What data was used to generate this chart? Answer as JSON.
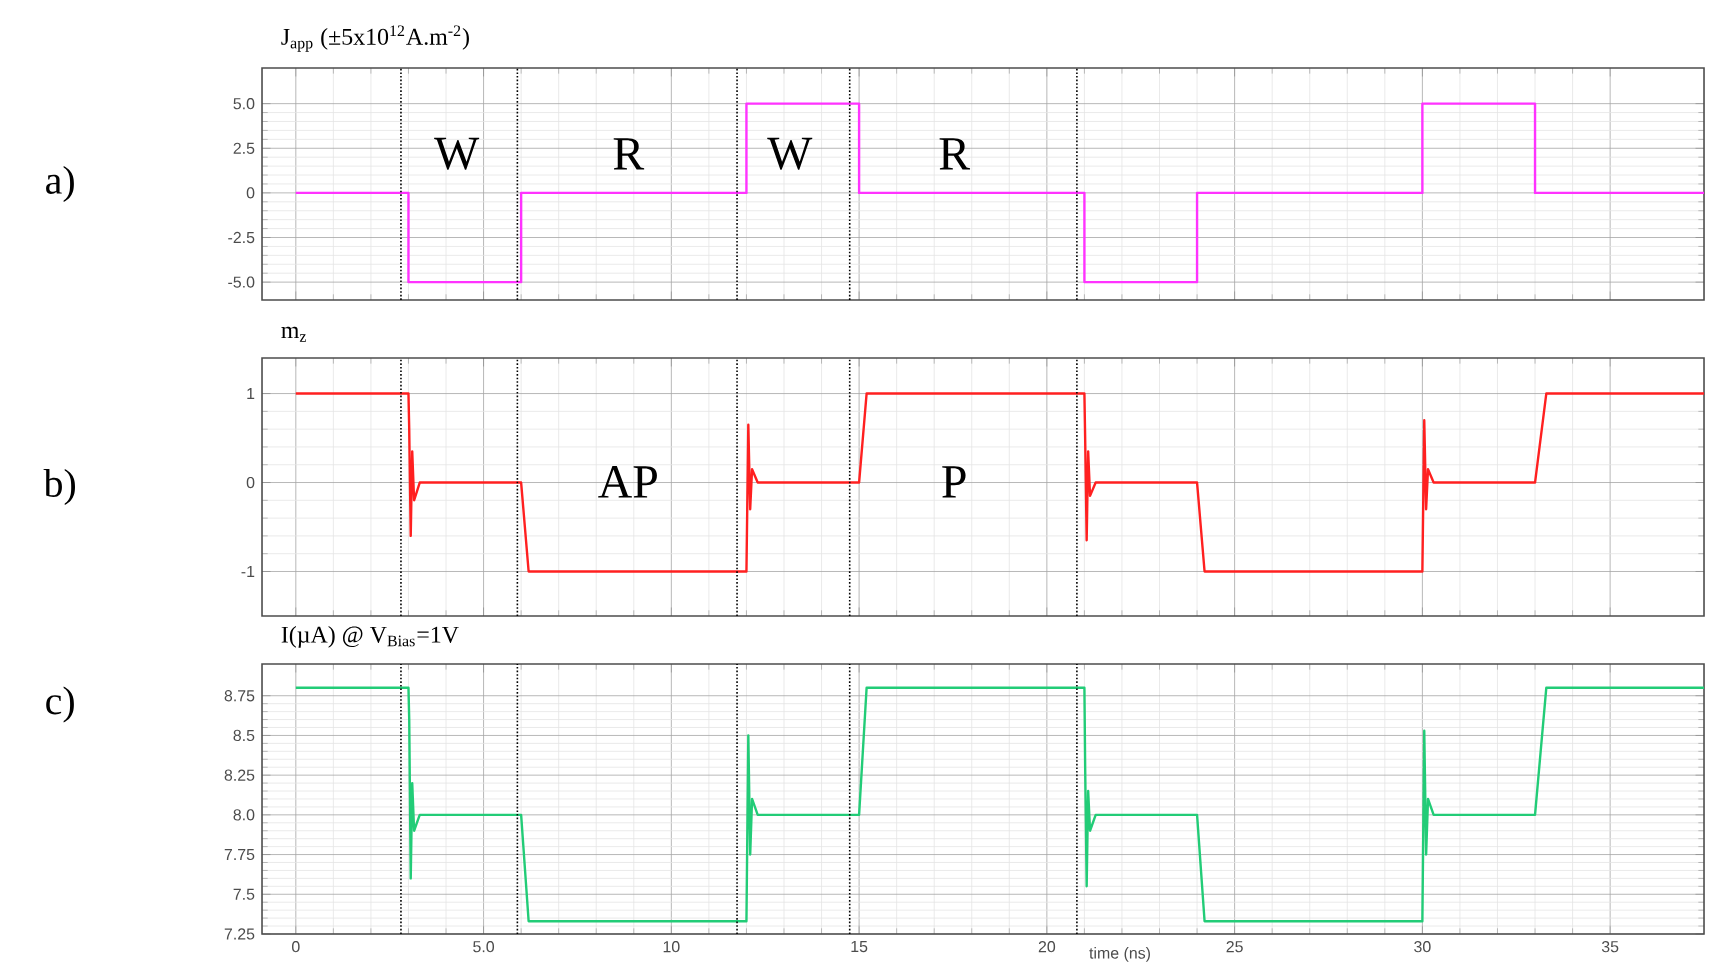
{
  "chart_data": [
    {
      "type": "line",
      "title": "J$_{app}$ (±5x10$^{12}$A.m$^{-2}$)",
      "xlim": [
        -0.9,
        37.5
      ],
      "ylim": [
        -6,
        7
      ],
      "xticks": [
        0,
        5,
        10,
        15,
        20,
        25,
        30,
        35
      ],
      "yticks": [
        {
          "value": 5,
          "label": "5.0"
        },
        2.5,
        0,
        -2.5,
        {
          "value": -5,
          "label": "-5.0"
        }
      ],
      "tick_labels": "y",
      "grid": true,
      "series": [
        {
          "color": "#ff33ff",
          "x": [
            0,
            3,
            3,
            6,
            6,
            12,
            12,
            15,
            15,
            21,
            21,
            24,
            24,
            30,
            30,
            33,
            33,
            37.5
          ],
          "values": [
            0,
            0,
            -5,
            -5,
            0,
            0,
            5,
            5,
            0,
            0,
            -5,
            -5,
            0,
            0,
            5,
            5,
            0,
            0
          ]
        }
      ],
      "ref_lines": [
        {
          "axis": "x",
          "value": 2.8,
          "line_style": "dotted"
        },
        {
          "axis": "x",
          "value": 5.9,
          "line_style": "dotted"
        },
        {
          "axis": "x",
          "value": 11.75,
          "line_style": "dotted"
        },
        {
          "axis": "x",
          "value": 14.75,
          "line_style": "dotted"
        },
        {
          "axis": "x",
          "value": 20.8,
          "line_style": "dotted"
        }
      ],
      "annotations": [
        "a)",
        "W",
        "R",
        "W",
        "R"
      ]
    },
    {
      "type": "line",
      "title": "m$_{z}$",
      "xlim": [
        -0.9,
        37.5
      ],
      "ylim": [
        -1.5,
        1.4
      ],
      "xticks": [
        0,
        5,
        10,
        15,
        20,
        25,
        30,
        35
      ],
      "yticks": [
        1,
        0,
        -1
      ],
      "tick_labels": "y",
      "grid": true,
      "series": [
        {
          "color": "#ff2020",
          "x": [
            0,
            3,
            3.02,
            3.06,
            3.1,
            3.15,
            3.3,
            6,
            6.2,
            12,
            12.05,
            12.1,
            12.15,
            12.3,
            15,
            15.2,
            21,
            21.02,
            21.06,
            21.1,
            21.15,
            21.3,
            24,
            24.2,
            30,
            30.05,
            30.1,
            30.15,
            30.3,
            33,
            33.3,
            37.5
          ],
          "values": [
            1,
            1,
            0.6,
            -0.6,
            0.35,
            -0.2,
            0,
            0,
            -1,
            -1,
            0.65,
            -0.3,
            0.15,
            0,
            0,
            1,
            1,
            0.5,
            -0.65,
            0.35,
            -0.15,
            0,
            0,
            -1,
            -1,
            0.7,
            -0.3,
            0.15,
            0,
            0,
            1,
            1
          ]
        }
      ],
      "ref_lines": [
        {
          "axis": "x",
          "value": 2.8,
          "line_style": "dotted"
        },
        {
          "axis": "x",
          "value": 5.9,
          "line_style": "dotted"
        },
        {
          "axis": "x",
          "value": 11.75,
          "line_style": "dotted"
        },
        {
          "axis": "x",
          "value": 14.75,
          "line_style": "dotted"
        },
        {
          "axis": "x",
          "value": 20.8,
          "line_style": "dotted"
        }
      ],
      "annotations": [
        "b)",
        "AP",
        "P"
      ]
    },
    {
      "type": "line",
      "title": "I(µA) @ V$_{Bias}$=1V",
      "xlabel": "time (ns)",
      "xlim": [
        -0.9,
        37.5
      ],
      "ylim": [
        7.25,
        8.95
      ],
      "xticks": [
        0,
        {
          "value": 5,
          "label": "5.0"
        },
        10,
        15,
        20,
        25,
        30,
        35
      ],
      "yticks": [
        8.75,
        8.5,
        8.25,
        {
          "value": 8,
          "label": "8.0"
        },
        7.75,
        7.5,
        7.25
      ],
      "grid": true,
      "series": [
        {
          "color": "#22cc77",
          "x": [
            0,
            3,
            3.02,
            3.06,
            3.1,
            3.15,
            3.3,
            6,
            6.2,
            12,
            12.05,
            12.1,
            12.15,
            12.3,
            15,
            15.2,
            21,
            21.02,
            21.06,
            21.1,
            21.15,
            21.3,
            24,
            24.2,
            30,
            30.05,
            30.1,
            30.15,
            30.3,
            33,
            33.3,
            37.5
          ],
          "values": [
            8.8,
            8.8,
            8.6,
            7.6,
            8.2,
            7.9,
            8.0,
            8.0,
            7.33,
            7.33,
            8.5,
            7.75,
            8.1,
            8.0,
            8.0,
            8.8,
            8.8,
            8.3,
            7.55,
            8.15,
            7.9,
            8.0,
            8.0,
            7.33,
            7.33,
            8.53,
            7.75,
            8.1,
            8.0,
            8.0,
            8.8,
            8.8
          ]
        }
      ],
      "ref_lines": [
        {
          "axis": "x",
          "value": 2.8,
          "line_style": "dotted"
        },
        {
          "axis": "x",
          "value": 5.9,
          "line_style": "dotted"
        },
        {
          "axis": "x",
          "value": 11.75,
          "line_style": "dotted"
        },
        {
          "axis": "x",
          "value": 14.75,
          "line_style": "dotted"
        },
        {
          "axis": "x",
          "value": 20.8,
          "line_style": "dotted"
        }
      ],
      "annotations": [
        "c)"
      ]
    }
  ]
}
